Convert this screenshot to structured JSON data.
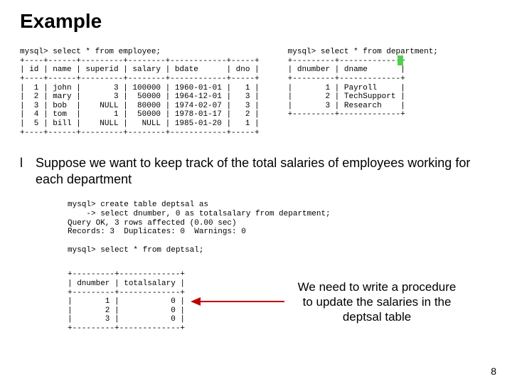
{
  "colors": {
    "highlight": "#4fd14f",
    "arrow": "#c00000",
    "background": "#ffffff",
    "text": "#000000"
  },
  "title": "Example",
  "employee_query": {
    "prompt": "mysql> select * from employee;",
    "columns": [
      "id",
      "name",
      "superid",
      "salary",
      "bdate",
      "dno"
    ],
    "rows": [
      {
        "id": "1",
        "name": "john",
        "superid": "3",
        "salary": "100000",
        "bdate": "1960-01-01",
        "dno": "1"
      },
      {
        "id": "2",
        "name": "mary",
        "superid": "3",
        "salary": "50000",
        "bdate": "1964-12-01",
        "dno": "3"
      },
      {
        "id": "3",
        "name": "bob",
        "superid": "NULL",
        "salary": "80000",
        "bdate": "1974-02-07",
        "dno": "3"
      },
      {
        "id": "4",
        "name": "tom",
        "superid": "1",
        "salary": "50000",
        "bdate": "1978-01-17",
        "dno": "2"
      },
      {
        "id": "5",
        "name": "bill",
        "superid": "NULL",
        "salary": "NULL",
        "bdate": "1985-01-20",
        "dno": "1"
      }
    ]
  },
  "department_query": {
    "prompt": "mysql> select * from department;",
    "columns": [
      "dnumber",
      "dname"
    ],
    "rows": [
      {
        "dnumber": "1",
        "dname": "Payroll"
      },
      {
        "dnumber": "2",
        "dname": "TechSupport"
      },
      {
        "dnumber": "3",
        "dname": "Research"
      }
    ]
  },
  "bullet_text": "Suppose we want to keep track of the total salaries of employees working for each department",
  "bullet_glyph": "l",
  "create_block": "mysql> create table deptsal as\n    -> select dnumber, 0 as totalsalary from department;\nQuery OK, 3 rows affected (0.00 sec)\nRecords: 3  Duplicates: 0  Warnings: 0\n\nmysql> select * from deptsal;",
  "deptsal_table": {
    "columns": [
      "dnumber",
      "totalsalary"
    ],
    "rows": [
      {
        "dnumber": "1",
        "totalsalary": "0"
      },
      {
        "dnumber": "2",
        "totalsalary": "0"
      },
      {
        "dnumber": "3",
        "totalsalary": "0"
      }
    ]
  },
  "callout": "We need to write a procedure to update the salaries in the deptsal table",
  "page_number": "8",
  "font": {
    "title_size": 28,
    "body_size": 18,
    "mono_size": 11,
    "callout_size": 17,
    "pagenum_size": 14
  }
}
